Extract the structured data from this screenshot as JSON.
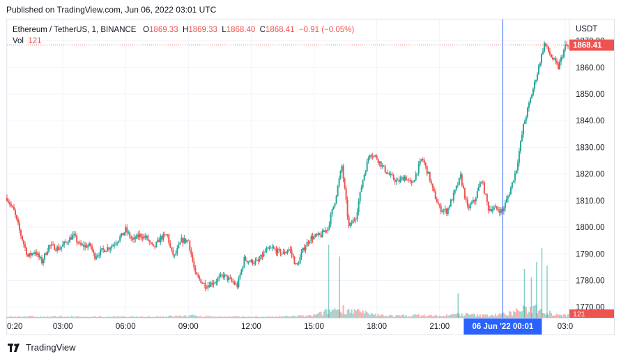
{
  "header": {
    "published": "Published on TradingView.com, Jun 06, 2022 03:01 UTC"
  },
  "legend": {
    "symbol": "Ethereum / TetherUS, 1, BINANCE",
    "o_label": "O",
    "o_value": "1869.33",
    "h_label": "H",
    "h_value": "1869.33",
    "l_label": "L",
    "l_value": "1868.40",
    "c_label": "C",
    "c_value": "1868.41",
    "change": "−0.91 (−0.05%)",
    "vol_label": "Vol",
    "vol_value": "121"
  },
  "footer": {
    "brand": "TradingView"
  },
  "colors": {
    "up": "#26a69a",
    "down": "#ef5350",
    "crosshair": "#2962ff",
    "grid": "#f0f3fa",
    "text": "#131722"
  },
  "chart_data": {
    "type": "candlestick",
    "currency": "USDT",
    "y_ticks": [
      "1770.00",
      "1780.00",
      "1790.00",
      "1800.00",
      "1810.00",
      "1820.00",
      "1830.00",
      "1840.00",
      "1850.00",
      "1860.00",
      "1870.00"
    ],
    "ylim": [
      1766,
      1878
    ],
    "x_ticks": [
      {
        "label": "0:20",
        "t": 0
      },
      {
        "label": "03:00",
        "t": 160
      },
      {
        "label": "06:00",
        "t": 340
      },
      {
        "label": "09:00",
        "t": 520
      },
      {
        "label": "12:00",
        "t": 700
      },
      {
        "label": "15:00",
        "t": 880
      },
      {
        "label": "18:00",
        "t": 1060
      },
      {
        "label": "21:00",
        "t": 1240
      },
      {
        "label": "03:0",
        "t": 1600
      }
    ],
    "xlim": [
      0,
      1610
    ],
    "crosshair": {
      "t": 1421,
      "label": "06 Jun '22   00:01"
    },
    "last_price": {
      "value": 1868.41,
      "label": "1868.41"
    },
    "last_volume": {
      "value": 121,
      "label": "121"
    },
    "price_path": [
      [
        0,
        1811
      ],
      [
        20,
        1806
      ],
      [
        40,
        1797
      ],
      [
        60,
        1789
      ],
      [
        80,
        1791
      ],
      [
        100,
        1787
      ],
      [
        120,
        1793
      ],
      [
        150,
        1792
      ],
      [
        190,
        1797
      ],
      [
        210,
        1793
      ],
      [
        240,
        1793
      ],
      [
        250,
        1789
      ],
      [
        270,
        1791
      ],
      [
        300,
        1793
      ],
      [
        330,
        1797
      ],
      [
        340,
        1799
      ],
      [
        360,
        1795
      ],
      [
        380,
        1797
      ],
      [
        400,
        1796
      ],
      [
        420,
        1792
      ],
      [
        440,
        1796
      ],
      [
        460,
        1797
      ],
      [
        470,
        1791
      ],
      [
        480,
        1789
      ],
      [
        500,
        1795
      ],
      [
        520,
        1795
      ],
      [
        540,
        1782
      ],
      [
        570,
        1778
      ],
      [
        600,
        1780
      ],
      [
        620,
        1782
      ],
      [
        640,
        1780
      ],
      [
        660,
        1778
      ],
      [
        680,
        1788
      ],
      [
        700,
        1787
      ],
      [
        720,
        1787
      ],
      [
        740,
        1791
      ],
      [
        760,
        1792
      ],
      [
        790,
        1790
      ],
      [
        800,
        1791
      ],
      [
        810,
        1792
      ],
      [
        830,
        1785
      ],
      [
        850,
        1792
      ],
      [
        870,
        1796
      ],
      [
        900,
        1797
      ],
      [
        920,
        1800
      ],
      [
        940,
        1810
      ],
      [
        960,
        1823
      ],
      [
        980,
        1800
      ],
      [
        1000,
        1804
      ],
      [
        1020,
        1818
      ],
      [
        1040,
        1828
      ],
      [
        1060,
        1826
      ],
      [
        1080,
        1822
      ],
      [
        1100,
        1819
      ],
      [
        1120,
        1817
      ],
      [
        1140,
        1819
      ],
      [
        1160,
        1816
      ],
      [
        1190,
        1826
      ],
      [
        1210,
        1819
      ],
      [
        1220,
        1814
      ],
      [
        1240,
        1807
      ],
      [
        1260,
        1806
      ],
      [
        1280,
        1812
      ],
      [
        1300,
        1819
      ],
      [
        1320,
        1807
      ],
      [
        1340,
        1810
      ],
      [
        1360,
        1818
      ],
      [
        1380,
        1807
      ],
      [
        1400,
        1807
      ],
      [
        1420,
        1806
      ],
      [
        1440,
        1813
      ],
      [
        1460,
        1822
      ],
      [
        1480,
        1838
      ],
      [
        1500,
        1848
      ],
      [
        1520,
        1858
      ],
      [
        1540,
        1869
      ],
      [
        1560,
        1864
      ],
      [
        1580,
        1860
      ],
      [
        1600,
        1868
      ]
    ],
    "volume_bumps": [
      [
        0,
        4
      ],
      [
        40,
        8
      ],
      [
        100,
        5
      ],
      [
        160,
        7
      ],
      [
        220,
        5
      ],
      [
        270,
        6
      ],
      [
        340,
        5
      ],
      [
        420,
        6
      ],
      [
        480,
        9
      ],
      [
        540,
        11
      ],
      [
        620,
        5
      ],
      [
        700,
        6
      ],
      [
        760,
        5
      ],
      [
        830,
        9
      ],
      [
        870,
        10
      ],
      [
        900,
        22
      ],
      [
        930,
        40
      ],
      [
        960,
        48
      ],
      [
        1000,
        36
      ],
      [
        1040,
        18
      ],
      [
        1060,
        15
      ],
      [
        1120,
        10
      ],
      [
        1180,
        14
      ],
      [
        1240,
        9
      ],
      [
        1300,
        20
      ],
      [
        1360,
        12
      ],
      [
        1420,
        18
      ],
      [
        1450,
        28
      ],
      [
        1470,
        45
      ],
      [
        1490,
        38
      ],
      [
        1510,
        55
      ],
      [
        1530,
        50
      ],
      [
        1550,
        30
      ],
      [
        1580,
        20
      ],
      [
        1600,
        12
      ]
    ],
    "volume_spikes": [
      [
        922,
        105
      ],
      [
        953,
        88
      ],
      [
        1293,
        35
      ],
      [
        1483,
        70
      ],
      [
        1503,
        58
      ],
      [
        1518,
        80
      ],
      [
        1533,
        100
      ],
      [
        1548,
        75
      ]
    ]
  }
}
